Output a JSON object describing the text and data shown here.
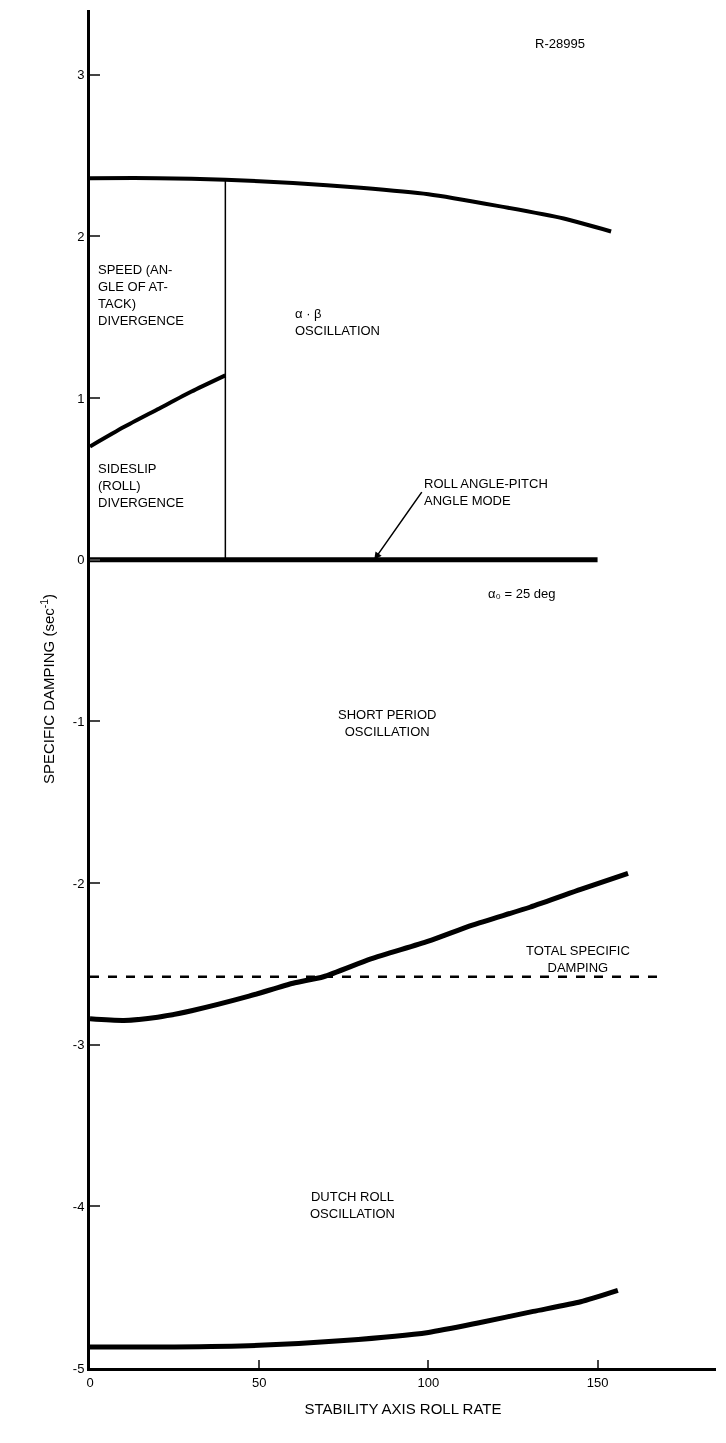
{
  "chart_data": {
    "type": "line",
    "xlabel": "STABILITY AXIS ROLL RATE",
    "ylabel": "SPECIFIC DAMPING (sec$^{-1}$)",
    "xlim": [
      0,
      185
    ],
    "xticks": [
      0,
      50,
      100,
      150
    ],
    "ylim": [
      -5,
      3.4
    ],
    "yticks": [
      -5,
      -4,
      -3,
      -2,
      -1,
      0,
      1,
      2,
      3
    ],
    "marker": "none",
    "line_style": "solid",
    "series": [
      {
        "color": "#000000",
        "x": [
          0,
          20,
          40,
          60,
          80,
          100,
          120,
          140,
          154
        ],
        "values": [
          2.36,
          2.36,
          2.35,
          2.33,
          2.3,
          2.26,
          2.19,
          2.11,
          2.03
        ]
      },
      {
        "color": "#000000",
        "x": [
          40,
          40
        ],
        "values": [
          0,
          2.35
        ]
      },
      {
        "color": "#000000",
        "x": [
          0,
          10,
          20,
          30,
          40
        ],
        "values": [
          0.7,
          0.82,
          0.93,
          1.04,
          1.14
        ]
      },
      {
        "color": "#000000",
        "x": [
          0,
          150
        ],
        "values": [
          0,
          0
        ]
      },
      {
        "color": "#000000",
        "x": [
          0,
          10,
          20,
          30,
          47,
          60,
          69,
          83,
          100,
          113,
          130,
          145,
          159
        ],
        "values": [
          -2.84,
          -2.85,
          -2.83,
          -2.79,
          -2.7,
          -2.62,
          -2.58,
          -2.47,
          -2.36,
          -2.26,
          -2.15,
          -2.04,
          -1.94
        ]
      },
      {
        "color": "#000000",
        "x": [
          0,
          25,
          50,
          75,
          100,
          115,
          131,
          145,
          156
        ],
        "values": [
          -4.87,
          -4.87,
          -4.86,
          -4.83,
          -4.78,
          -4.72,
          -4.65,
          -4.59,
          -4.52
        ]
      }
    ],
    "ref_lines": [
      {
        "axis": "y",
        "value": -2.58,
        "label": "TOTAL SPECIFIC\nDAMPING",
        "color": "#000000",
        "line_style": "dashed"
      }
    ],
    "annotations": [
      "R-28995",
      "SPEED (AN-\nGLE OF AT-\nTACK)\nDIVERGENCE",
      "α · β\nOSCILLATION",
      "SIDESLIP\n(ROLL)\nDIVERGENCE",
      {
        "text": "ROLL ANGLE-PITCH\nANGLE MODE",
        "x": 84,
        "y": 0
      },
      "α₀ = 25 deg",
      "SHORT PERIOD\nOSCILLATION",
      "DUTCH ROLL\nOSCILLATION"
    ]
  }
}
